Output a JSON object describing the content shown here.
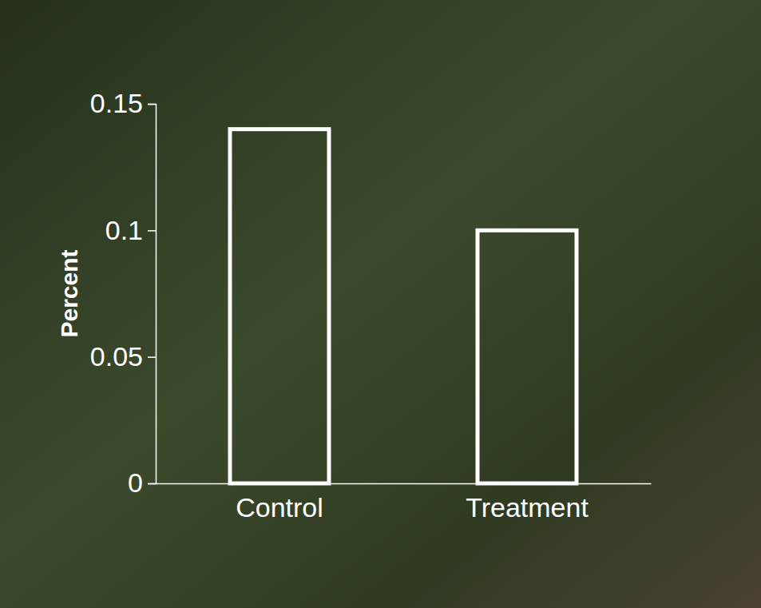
{
  "chart_data": {
    "type": "bar",
    "y_label": "Percent",
    "categories": [
      "Control",
      "Treatment"
    ],
    "values": [
      0.14,
      0.1
    ],
    "color": "#ffffff",
    "ylim": [
      0,
      0.15
    ],
    "yticks": [
      0,
      0.05,
      0.1,
      0.15
    ],
    "grid": false
  }
}
